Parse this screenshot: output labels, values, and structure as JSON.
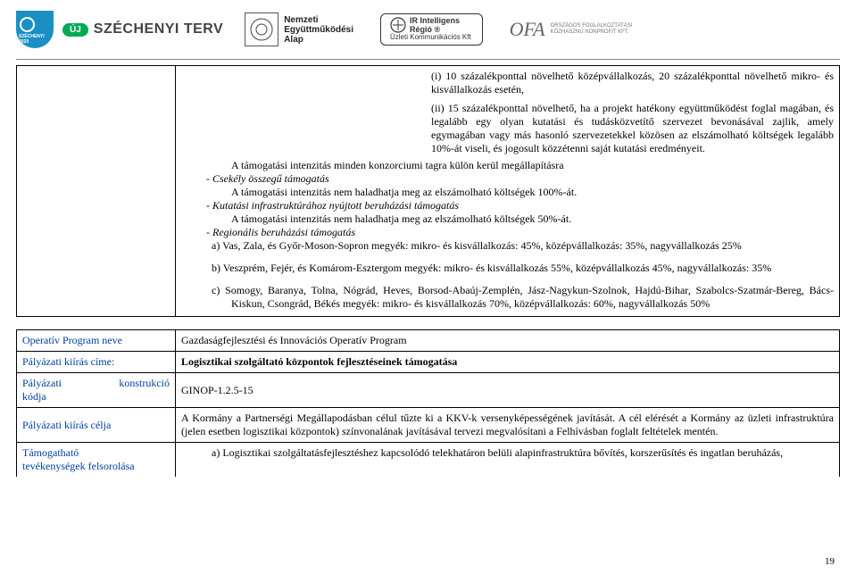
{
  "logos": {
    "sz2020": "SZÉCHENYI 2020",
    "szterv_badge": "ÚJ",
    "szterv_text": "SZÉCHENYI TERV",
    "nea_l1": "Nemzeti",
    "nea_l2": "Együttműködési",
    "nea_l3": "Alap",
    "ir_l1": "IR Intelligens Régió ®",
    "ir_l2": "Üzleti Kommunikációs Kft",
    "ofa": "OFA",
    "ofa_l1": "ORSZÁGOS FOGLALKOZTATÁSI",
    "ofa_l2": "KÖZHASZNÚ NONPROFIT KFT."
  },
  "main_text": {
    "p1_a": "(i) 10 százalékponttal növelhető középvállalkozás, 20 százalékponttal növelhető mikro- és kisvállalkozás esetén,",
    "p1_b": "(ii) 15 százalékponttal növelhető, ha a projekt hatékony együttműködést foglal magában, és legalább egy olyan kutatási és tudásközvetítő szervezet bevonásával zajlik, amely egymagában vagy más hasonló szervezetekkel közösen az elszámolható költségek legalább 10%-át viseli, és jogosult közzétenni saját kutatási eredményeit.",
    "p2": "A támogatási intenzitás minden konzorciumi tagra külön kerül megállapításra",
    "csek_head": "- Csekély összegű támogatás",
    "csek_line": "A támogatási intenzitás nem haladhatja meg az elszámolható költségek 100%-át.",
    "kut_head": "- Kutatási infrastruktúrához nyújtott beruházási támogatás",
    "kut_line": "A támogatási intenzitás nem haladhatja meg az elszámolható költségek 50%-át.",
    "reg_head": "- Regionális beruházási támogatás",
    "a": "a) Vas, Zala, és Győr-Moson-Sopron megyék: mikro- és kisvállalkozás: 45%, középvállalkozás: 35%, nagyvállalkozás 25%",
    "b": "b) Veszprém, Fejér, és Komárom-Esztergom megyék: mikro- és kisvállalkozás 55%, középvállalkozás 45%, nagyvállalkozás: 35%",
    "c": "c) Somogy, Baranya, Tolna, Nógrád, Heves, Borsod-Abaúj-Zemplén, Jász-Nagykun-Szolnok, Hajdú-Bihar, Szabolcs-Szatmár-Bereg, Bács-Kiskun, Csongrád, Békés megyék: mikro- és kisvállalkozás 70%, középvállalkozás: 60%, nagyvállalkozás 50%"
  },
  "labels": {
    "op_prog": "Operatív Program neve",
    "kiiras_cim": "Pályázati kiírás címe:",
    "konstr_l1": "Pályázati konstrukció",
    "konstr_l2": "kódja",
    "kiiras_cel": "Pályázati kiírás célja",
    "tamog_l1": "Támogatható",
    "tamog_l2": "tevékenységek felsorolása"
  },
  "fields": {
    "op_prog": "Gazdaságfejlesztési és Innovációs Operatív Program",
    "kiiras_cim": "Logisztikai szolgáltató központok fejlesztéseinek támogatása",
    "konstr": "GINOP-1.2.5-15",
    "kiiras_cel": "A Kormány a Partnerségi Megállapodásban célul tűzte ki a KKV-k versenyképességének javítását. A cél elérését a Kormány az üzleti infrastruktúra (jelen esetben logisztikai központok) színvonalának javításával tervezi megvalósítani a Felhívásban foglalt feltételek mentén.",
    "tamog_a": "a) Logisztikai szolgáltatásfejlesztéshez kapcsolódó telekhatáron belüli alapinfrastruktúra bővítés, korszerűsítés és ingatlan beruházás,"
  },
  "pagenum": "19"
}
